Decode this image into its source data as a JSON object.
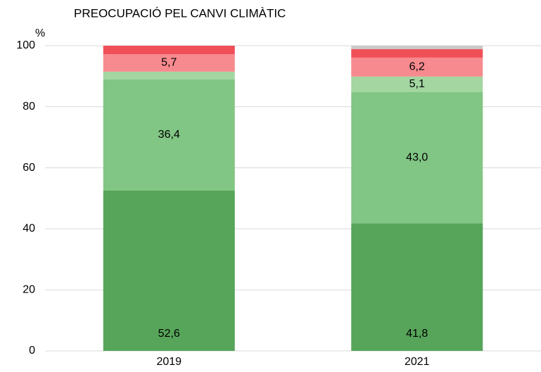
{
  "chart_data": {
    "type": "stacked_bar",
    "title": "PREOCUPACIÓ PEL CANVI CLIMÀTIC",
    "y_label": "%",
    "categories": [
      "2019",
      "2021"
    ],
    "series": [
      {
        "color": "#57a55a",
        "values": [
          52.6,
          41.8
        ],
        "value_labels": [
          "52,6",
          "41,8"
        ]
      },
      {
        "color": "#81c684",
        "values": [
          36.4,
          43.0
        ],
        "value_labels": [
          "36,4",
          "43,0"
        ]
      },
      {
        "color": "#a3d6a0",
        "values": [
          2.5,
          5.1
        ],
        "value_labels": [
          null,
          "5,1"
        ]
      },
      {
        "color": "#f78a8e",
        "values": [
          5.7,
          6.2
        ],
        "value_labels": [
          "5,7",
          "6,2"
        ]
      },
      {
        "color": "#f04f58",
        "values": [
          2.8,
          2.8
        ],
        "value_labels": [
          null,
          null
        ]
      },
      {
        "color": "#c9c9c9",
        "values": [
          0,
          1.1
        ],
        "value_labels": [
          null,
          null
        ]
      }
    ],
    "ylim": [
      0,
      100
    ],
    "yticks": [
      0,
      20,
      40,
      60,
      80,
      100
    ],
    "grid": true
  }
}
